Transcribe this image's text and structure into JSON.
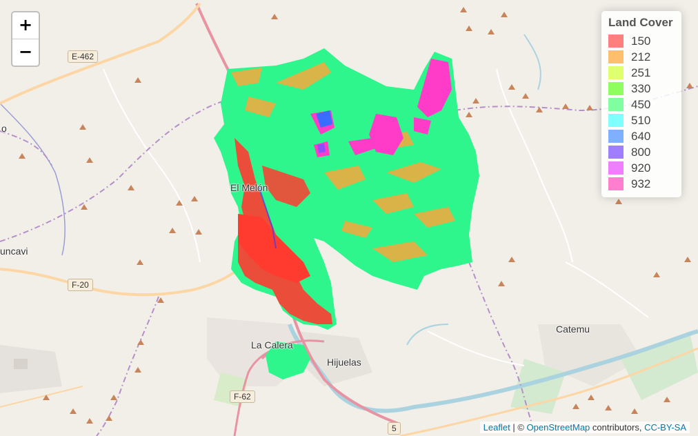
{
  "zoom": {
    "in_label": "+",
    "out_label": "−"
  },
  "legend": {
    "title": "Land Cover",
    "items": [
      {
        "label": "150",
        "color": "#ff7f7f"
      },
      {
        "label": "212",
        "color": "#ffbf6f"
      },
      {
        "label": "251",
        "color": "#dfff6f"
      },
      {
        "label": "330",
        "color": "#8fff5f"
      },
      {
        "label": "450",
        "color": "#7fff9f"
      },
      {
        "label": "510",
        "color": "#7fffff"
      },
      {
        "label": "640",
        "color": "#7fafff"
      },
      {
        "label": "800",
        "color": "#9f7fff"
      },
      {
        "label": "920",
        "color": "#ef7fff"
      },
      {
        "label": "932",
        "color": "#ff7fcf"
      }
    ]
  },
  "places": {
    "el_melon": "El Melón",
    "huncavi": "uncavi",
    "la_calera": "La Calera",
    "hijuelas": "Hijuelas",
    "catemu": "Catemu",
    "edge_o": "o"
  },
  "road_shields": {
    "e462": "E-462",
    "f20": "F-20",
    "f62": "F-62",
    "r5": "5"
  },
  "attribution": {
    "leaflet": "Leaflet",
    "sep": " | © ",
    "osm": "OpenStreetMap",
    "contributors": " contributors, ",
    "license": "CC-BY-SA"
  },
  "colors": {
    "basemap": "#f2efe9",
    "raster_main": "#2ef58c",
    "raster_red": "#ff3b30",
    "raster_orange": "#f7a83c",
    "raster_magenta": "#ff3cc7",
    "raster_blue": "#3a6cff",
    "river": "#aad3df",
    "road_major": "#e892a2",
    "road_secondary": "#fcd6a4"
  }
}
